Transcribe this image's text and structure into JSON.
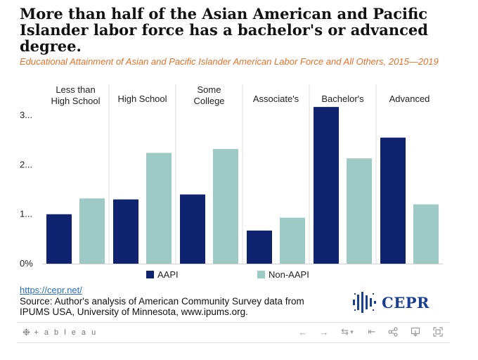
{
  "header": {
    "title": "More than half of the Asian American and Pacific Islander labor force has a bachelor's or advanced degree.",
    "subtitle": "Educational Attainment of Asian and Pacific Islander American Labor Force and All Others, 2015—2019"
  },
  "chart_data": {
    "type": "bar",
    "categories": [
      [
        "Less than",
        "High School"
      ],
      [
        "High School"
      ],
      [
        "Some",
        "College"
      ],
      [
        "Associate's"
      ],
      [
        "Bachelor's"
      ],
      [
        "Advanced"
      ]
    ],
    "series": [
      {
        "name": "AAPI",
        "color": "#0f2370",
        "values": [
          1.0,
          1.3,
          1.4,
          0.67,
          3.17,
          2.55
        ]
      },
      {
        "name": "Non-AAPI",
        "color": "#9dcac4",
        "values": [
          1.32,
          2.24,
          2.32,
          0.93,
          2.13,
          1.2
        ]
      }
    ],
    "y_ticks": [
      {
        "value": 0,
        "label": "0%"
      },
      {
        "value": 1,
        "label": "1..."
      },
      {
        "value": 2,
        "label": "2..."
      },
      {
        "value": 3,
        "label": "3..."
      }
    ],
    "ylim": [
      0,
      3.4
    ],
    "grid": false,
    "legend_position": "bottom"
  },
  "footer": {
    "source_link": "https://cepr.net/",
    "source_text": "Source: Author's analysis of American Community Survey data from IPUMS USA, University of Minnesota, www.ipums.org.",
    "logo_text": "CEPR"
  },
  "toolbar": {
    "brand": "+ a b l e a u"
  }
}
